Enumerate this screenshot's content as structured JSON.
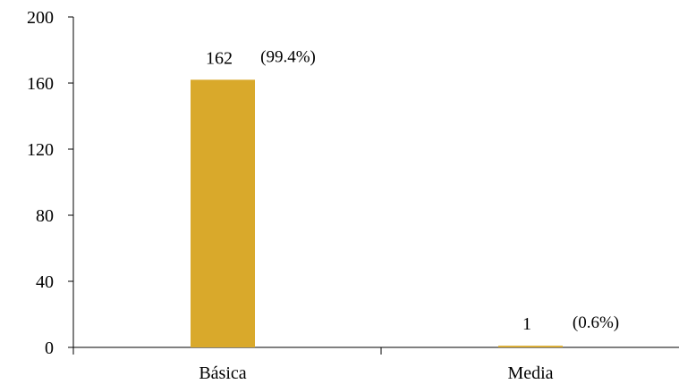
{
  "chart_data": {
    "type": "bar",
    "categories": [
      "Básica",
      "Media"
    ],
    "values": [
      162,
      1
    ],
    "value_labels": [
      "162",
      "1"
    ],
    "percent_labels": [
      "(99.4%)",
      "(0.6%)"
    ],
    "yticks": [
      "0",
      "40",
      "80",
      "120",
      "160",
      "200"
    ],
    "ylim": [
      0,
      200
    ],
    "grid": false,
    "legend": "none",
    "bar_color": "#D9A92B",
    "axis_color": "#000000"
  }
}
